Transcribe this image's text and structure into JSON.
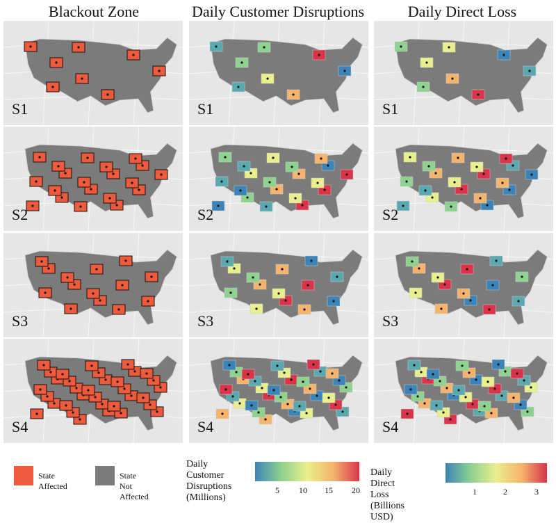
{
  "titles": [
    "Blackout Zone",
    "Daily Customer Disruptions",
    "Daily Direct Loss"
  ],
  "scenarios": [
    "S1",
    "S2",
    "S3",
    "S4"
  ],
  "colors": {
    "affected": "#ee5a3c",
    "not_affected": "#7b7b7b",
    "background": "#e6e6e6"
  },
  "legend": {
    "affected_label": "State Affected",
    "not_affected_label": "State Not Affected",
    "disruptions_title_1": "Daily Customer",
    "disruptions_title_2": "Disruptions",
    "disruptions_title_3": "(Millions)",
    "disruptions_ticks": [
      "5",
      "10",
      "15",
      "20"
    ],
    "loss_title_1": "Daily Direct Loss",
    "loss_title_2": "(Billions USD)",
    "loss_ticks": [
      "1",
      "2",
      "3"
    ]
  }
}
